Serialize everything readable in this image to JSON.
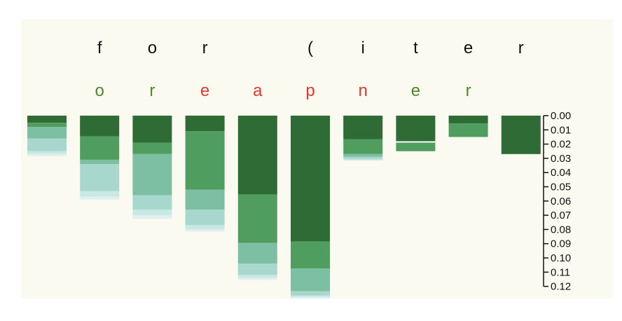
{
  "chart_data": {
    "type": "bar",
    "orientation": "downward stacked",
    "input_tokens": [
      "",
      "f",
      "o",
      "r",
      "",
      "(",
      "i",
      "t",
      "e",
      "r"
    ],
    "predicted_tokens": [
      "",
      "o",
      "r",
      "e",
      "a",
      "p",
      "n",
      "e",
      "r",
      ""
    ],
    "predicted_token_colors": [
      "",
      "#4a8a2a",
      "#4a8a2a",
      "#e03a2e",
      "#e03a2e",
      "#e03a2e",
      "#e03a2e",
      "#4a8a2a",
      "#4a8a2a",
      ""
    ],
    "input_token_color": "#111111",
    "y_axis": {
      "ylim": [
        0,
        0.12
      ],
      "side": "right",
      "tick_labels": [
        "0.00",
        "0.01",
        "0.02",
        "0.03",
        "0.04",
        "0.05",
        "0.06",
        "0.07",
        "0.08",
        "0.09",
        "0.10",
        "0.11",
        "0.12"
      ]
    },
    "layer_colors": [
      "#2e6b35",
      "#4f9e5f",
      "#7cbfa3",
      "#a8d8cd",
      "#c9e8e3",
      "#dff0ee"
    ],
    "columns": [
      {
        "segments": [
          0.005,
          0.003,
          0.008,
          0.009,
          0.002,
          0.0015
        ]
      },
      {
        "segments": [
          0.0145,
          0.0165,
          0.003,
          0.019,
          0.004,
          0.002
        ]
      },
      {
        "segments": [
          0.019,
          0.008,
          0.029,
          0.01,
          0.004,
          0.0025
        ]
      },
      {
        "segments": [
          0.011,
          0.041,
          0.014,
          0.011,
          0.003,
          0.0015
        ]
      },
      {
        "segments": [
          0.0555,
          0.034,
          0.0145,
          0.008,
          0.002,
          0.0015
        ]
      },
      {
        "segments": [
          0.0885,
          0.019,
          0.016,
          0.003,
          0.001,
          0.001
        ]
      },
      {
        "segments": [
          0.0165,
          0.0105,
          0.002,
          0.0015,
          0.001,
          0
        ]
      },
      {
        "segments": [
          0.0185,
          0.0065,
          0,
          0,
          0,
          0
        ]
      },
      {
        "segments": [
          0.0055,
          0.0095,
          0,
          0,
          0,
          0
        ]
      },
      {
        "segments": [
          0.027,
          0,
          0,
          0,
          0,
          0
        ]
      }
    ],
    "separator_line": {
      "column": 7,
      "at": 0.0185
    }
  }
}
